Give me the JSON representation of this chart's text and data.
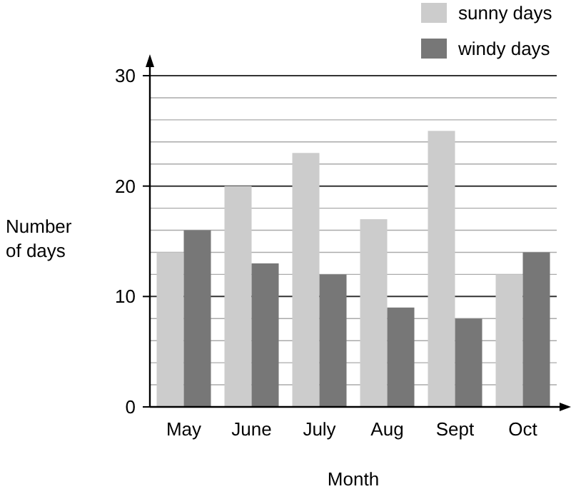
{
  "chart_data": {
    "type": "bar",
    "xlabel": "Month",
    "ylabel": "Number\nof days",
    "categories": [
      "May",
      "June",
      "July",
      "Aug",
      "Sept",
      "Oct"
    ],
    "series": [
      {
        "name": "sunny days",
        "color": "#cccccc",
        "values": [
          14,
          20,
          23,
          17,
          25,
          12
        ]
      },
      {
        "name": "windy days",
        "color": "#777777",
        "values": [
          16,
          13,
          12,
          9,
          8,
          14
        ]
      }
    ],
    "ylim": [
      0,
      30
    ],
    "yticks": [
      0,
      {
        "value": 2,
        "label": null
      },
      {
        "value": 4,
        "label": null
      },
      {
        "value": 6,
        "label": null
      },
      {
        "value": 8,
        "label": null
      },
      10,
      {
        "value": 12,
        "label": null
      },
      {
        "value": 14,
        "label": null
      },
      {
        "value": 16,
        "label": null
      },
      {
        "value": 18,
        "label": null
      },
      20,
      {
        "value": 22,
        "label": null
      },
      {
        "value": 24,
        "label": null
      },
      {
        "value": 26,
        "label": null
      },
      {
        "value": 28,
        "label": null
      },
      30
    ],
    "grid": "y",
    "legend": "top right"
  }
}
